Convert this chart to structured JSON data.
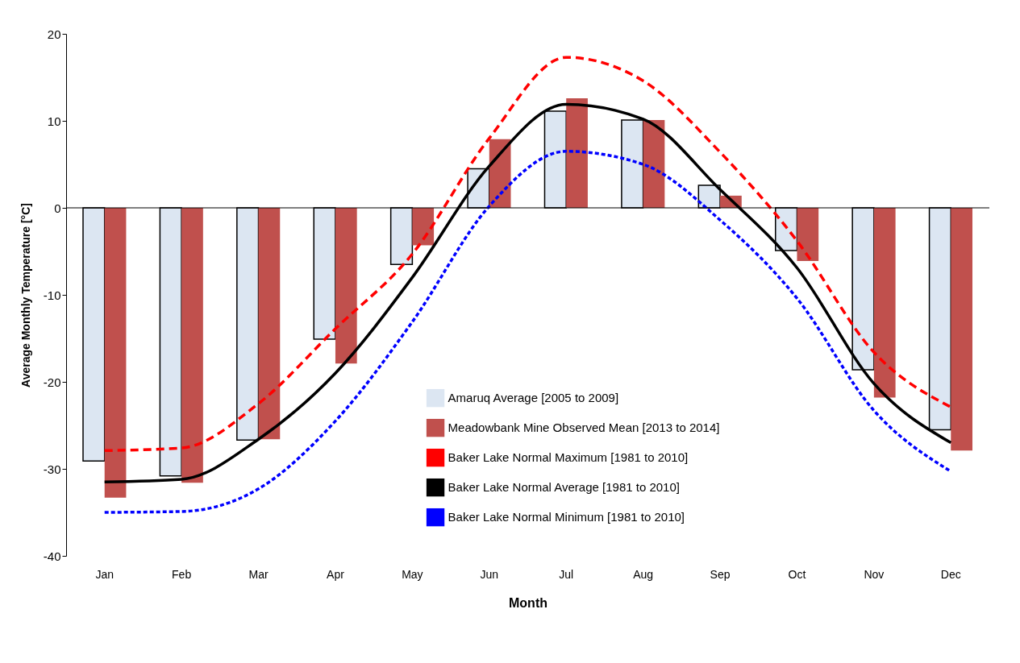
{
  "chart_data": {
    "type": "bar",
    "xlabel": "Month",
    "ylabel": "Average Monthly Temperature [°C]",
    "categories": [
      "Jan",
      "Feb",
      "Mar",
      "Apr",
      "May",
      "Jun",
      "Jul",
      "Aug",
      "Sep",
      "Oct",
      "Nov",
      "Dec"
    ],
    "series": [
      {
        "name": "Amaruq Average [2005 to 2009]",
        "color": "#dce6f2",
        "values": [
          -29.1,
          -30.8,
          -26.7,
          -15.1,
          -6.5,
          4.5,
          11.1,
          10.1,
          2.6,
          -4.9,
          -18.6,
          -25.5
        ]
      },
      {
        "name": "Meadowbank Mine Observed Mean [2013 to 2014]",
        "color": "#c0504d",
        "values": [
          -33.3,
          -31.6,
          -26.6,
          -17.9,
          -4.3,
          7.9,
          12.6,
          10.1,
          1.4,
          -6.1,
          -21.8,
          -27.9
        ]
      },
      {
        "name": "Baker Lake Normal Maximum [1981 to 2010]",
        "type": "line",
        "color": "#ff0000",
        "line_style": "dashed",
        "values": [
          -27.9,
          -27.6,
          -22.5,
          -13.9,
          -5.3,
          8.0,
          17.3,
          14.6,
          6.4,
          -3.8,
          -16.6,
          -22.9
        ]
      },
      {
        "name": "Baker Lake Normal Average [1981 to 2010]",
        "type": "line",
        "color": "#000000",
        "line_style": "solid",
        "values": [
          -31.5,
          -31.2,
          -26.6,
          -19.0,
          -8.0,
          4.8,
          11.9,
          10.2,
          2.1,
          -6.9,
          -20.2,
          -27.0
        ]
      },
      {
        "name": "Baker Lake Normal Minimum [1981 to 2010]",
        "type": "line",
        "color": "#0000ff",
        "line_style": "dotted",
        "values": [
          -35.0,
          -34.9,
          -32.3,
          -24.5,
          -13.1,
          0.2,
          6.5,
          5.0,
          -1.4,
          -10.4,
          -23.3,
          -30.3
        ]
      }
    ],
    "ylim": [
      -40,
      20
    ],
    "yticks": [
      -40,
      -30,
      -20,
      -10,
      0,
      10,
      20
    ],
    "ref_lines": [
      {
        "axis": "y",
        "value": 0,
        "color": "#000000"
      }
    ],
    "legend": "bottom right",
    "grid": false,
    "marker": "none"
  }
}
